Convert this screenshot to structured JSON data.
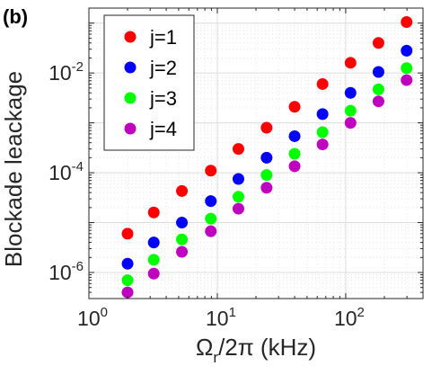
{
  "panel_label": "(b)",
  "chart_data": {
    "type": "scatter",
    "title": "",
    "xlabel_main": "Ω",
    "xlabel_sub": "r",
    "xlabel_rest": "/2π (kHz)",
    "ylabel": "Blockade leackage",
    "x_scale": "log",
    "y_scale": "log",
    "xlim": [
      1,
      400
    ],
    "ylim": [
      3e-07,
      0.2
    ],
    "grid": true,
    "grid_minor": true,
    "legend_position": "top-left",
    "x_ticks": [
      {
        "value": 1,
        "base": "10",
        "exp": "0"
      },
      {
        "value": 10,
        "base": "10",
        "exp": "1"
      },
      {
        "value": 100,
        "base": "10",
        "exp": "2"
      }
    ],
    "y_ticks": [
      {
        "value": 1e-06,
        "base": "10",
        "exp": "-6"
      },
      {
        "value": 0.0001,
        "base": "10",
        "exp": "-4"
      },
      {
        "value": 0.01,
        "base": "10",
        "exp": "-2"
      }
    ],
    "x": [
      2,
      3.2,
      5.3,
      8.9,
      14.6,
      24.2,
      40,
      66,
      109,
      180,
      298
    ],
    "series": [
      {
        "name": "j=1",
        "color": "#ff0000",
        "values": [
          6e-06,
          1.6e-05,
          4.3e-05,
          0.00011,
          0.0003,
          0.0008,
          0.0021,
          0.006,
          0.016,
          0.04,
          0.105
        ]
      },
      {
        "name": "j=2",
        "color": "#0000ff",
        "values": [
          1.5e-06,
          4e-06,
          1e-05,
          2.7e-05,
          7.5e-05,
          0.0002,
          0.00054,
          0.0015,
          0.004,
          0.0105,
          0.028
        ]
      },
      {
        "name": "j=3",
        "color": "#00ff00",
        "values": [
          7e-07,
          1.8e-06,
          4.6e-06,
          1.2e-05,
          3.3e-05,
          9e-05,
          0.00024,
          0.00065,
          0.00175,
          0.0047,
          0.0125
        ]
      },
      {
        "name": "j=4",
        "color": "#bf00bf",
        "values": [
          4e-07,
          9.5e-07,
          2.6e-06,
          6.7e-06,
          1.9e-05,
          5e-05,
          0.000135,
          0.00037,
          0.001,
          0.0027,
          0.0072
        ]
      }
    ]
  }
}
